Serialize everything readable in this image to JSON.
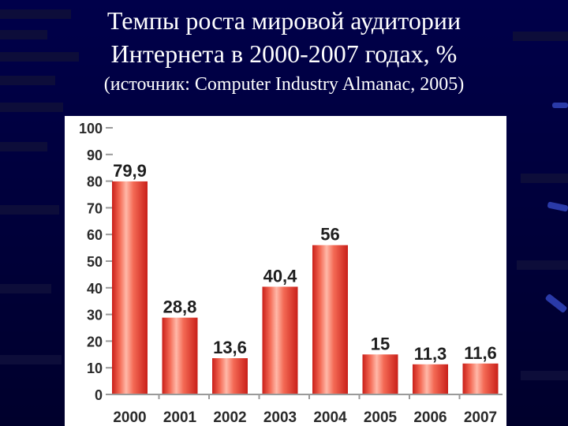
{
  "slide": {
    "title_line1": "Темпы роста мировой аудитории",
    "title_line2": "Интернета в 2000-2007 годах, %",
    "source": "(источник: Computer Industry Almanac, 2005)"
  },
  "chart_data": {
    "type": "bar",
    "categories": [
      "2000",
      "2001",
      "2002",
      "2003",
      "2004",
      "2005",
      "2006",
      "2007"
    ],
    "values": [
      79.9,
      28.8,
      13.6,
      40.4,
      56,
      15,
      11.3,
      11.6
    ],
    "value_labels": [
      "79,9",
      "28,8",
      "13,6",
      "40,4",
      "56",
      "15",
      "11,3",
      "11,6"
    ],
    "yticks": [
      "0",
      "10",
      "20",
      "30",
      "40",
      "50",
      "60",
      "70",
      "80",
      "90",
      "100"
    ],
    "ylim": [
      0,
      100
    ],
    "bar_color": "#e83a2e",
    "grid": false,
    "legend": "none"
  }
}
